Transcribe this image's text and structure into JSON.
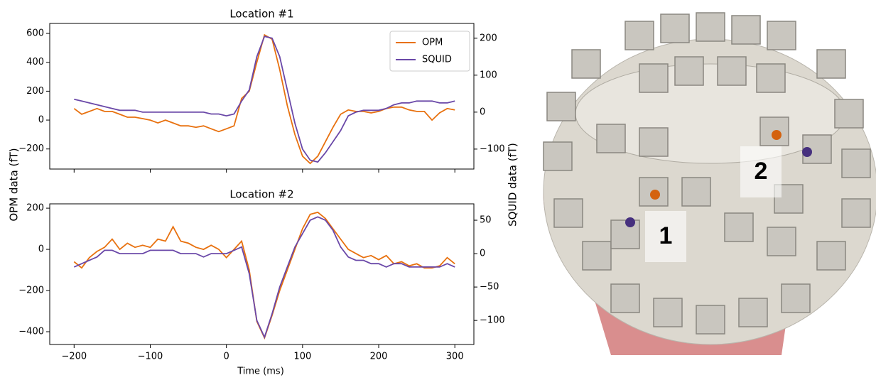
{
  "chart_data": [
    {
      "type": "line",
      "title": "Location #1",
      "x": [
        -200,
        -190,
        -180,
        -170,
        -160,
        -150,
        -140,
        -130,
        -120,
        -110,
        -100,
        -90,
        -80,
        -70,
        -60,
        -50,
        -40,
        -30,
        -20,
        -10,
        0,
        10,
        20,
        30,
        40,
        50,
        60,
        70,
        80,
        90,
        100,
        110,
        120,
        130,
        140,
        150,
        160,
        170,
        180,
        190,
        200,
        210,
        220,
        230,
        240,
        250,
        260,
        270,
        280,
        290,
        300
      ],
      "xlim": [
        -232,
        325
      ],
      "ylim": [
        -339,
        669
      ],
      "yticks": [
        {
          "value": -200,
          "label": "−200"
        },
        0,
        200,
        400,
        600
      ],
      "y2lim": [
        -154,
        240
      ],
      "y2ticks": [
        {
          "value": -100,
          "label": "−100"
        },
        0,
        100,
        200
      ],
      "legend": "upper right",
      "series": [
        {
          "name": "OPM",
          "color": "#e8710f",
          "values": [
            80,
            40,
            60,
            80,
            60,
            60,
            40,
            20,
            20,
            10,
            0,
            -20,
            0,
            -20,
            -40,
            -40,
            -50,
            -40,
            -60,
            -80,
            -60,
            -40,
            150,
            200,
            400,
            590,
            560,
            350,
            100,
            -100,
            -250,
            -300,
            -250,
            -150,
            -50,
            40,
            70,
            60,
            60,
            50,
            60,
            80,
            90,
            90,
            70,
            60,
            60,
            0,
            50,
            80,
            70
          ]
        },
        {
          "name": "SQUID",
          "color": "#6a48a8",
          "axis": "y2",
          "values": [
            35,
            30,
            25,
            20,
            15,
            10,
            5,
            5,
            5,
            0,
            0,
            0,
            0,
            0,
            0,
            0,
            0,
            0,
            -5,
            -5,
            -10,
            -5,
            30,
            60,
            150,
            205,
            200,
            150,
            60,
            -30,
            -100,
            -130,
            -135,
            -110,
            -80,
            -50,
            -10,
            0,
            5,
            5,
            5,
            10,
            20,
            25,
            25,
            30,
            30,
            30,
            25,
            25,
            30
          ]
        }
      ]
    },
    {
      "type": "line",
      "title": "Location #2",
      "x": [
        -200,
        -190,
        -180,
        -170,
        -160,
        -150,
        -140,
        -130,
        -120,
        -110,
        -100,
        -90,
        -80,
        -70,
        -60,
        -50,
        -40,
        -30,
        -20,
        -10,
        0,
        10,
        20,
        30,
        40,
        50,
        60,
        70,
        80,
        90,
        100,
        110,
        120,
        130,
        140,
        150,
        160,
        170,
        180,
        190,
        200,
        210,
        220,
        230,
        240,
        250,
        260,
        270,
        280,
        290,
        300
      ],
      "xlim": [
        -232,
        325
      ],
      "xticks": [
        {
          "value": -200,
          "label": "−200"
        },
        {
          "value": -100,
          "label": "−100"
        },
        0,
        100,
        200,
        300
      ],
      "ylim": [
        -462,
        221
      ],
      "yticks": [
        {
          "value": -400,
          "label": "−400"
        },
        {
          "value": -200,
          "label": "−200"
        },
        0,
        200
      ],
      "y2lim": [
        -136,
        74.5
      ],
      "y2ticks": [
        {
          "value": -100,
          "label": "−100"
        },
        {
          "value": -50,
          "label": "−50"
        },
        0,
        50
      ],
      "series": [
        {
          "name": "OPM",
          "color": "#e8710f",
          "values": [
            -60,
            -90,
            -40,
            -10,
            10,
            50,
            0,
            30,
            10,
            20,
            10,
            50,
            40,
            110,
            40,
            30,
            10,
            0,
            20,
            0,
            -40,
            0,
            40,
            -100,
            -350,
            -430,
            -320,
            -200,
            -100,
            0,
            100,
            170,
            180,
            150,
            100,
            50,
            0,
            -20,
            -40,
            -30,
            -50,
            -30,
            -70,
            -60,
            -80,
            -70,
            -90,
            -90,
            -80,
            -40,
            -70
          ]
        },
        {
          "name": "SQUID",
          "color": "#6a48a8",
          "axis": "y2",
          "values": [
            -20,
            -15,
            -10,
            -5,
            5,
            5,
            0,
            0,
            0,
            0,
            5,
            5,
            5,
            5,
            0,
            0,
            0,
            -5,
            0,
            0,
            0,
            5,
            10,
            -30,
            -100,
            -125,
            -90,
            -50,
            -20,
            10,
            30,
            50,
            55,
            50,
            35,
            10,
            -5,
            -10,
            -10,
            -15,
            -15,
            -20,
            -15,
            -15,
            -20,
            -20,
            -20,
            -20,
            -20,
            -15,
            -20
          ]
        }
      ]
    }
  ],
  "figure": {
    "xlabel": "Time (ms)",
    "ylabel": "OPM data (fT)",
    "y2label": "SQUID data (fT)"
  },
  "image": {
    "labels": [
      "1",
      "2"
    ]
  }
}
